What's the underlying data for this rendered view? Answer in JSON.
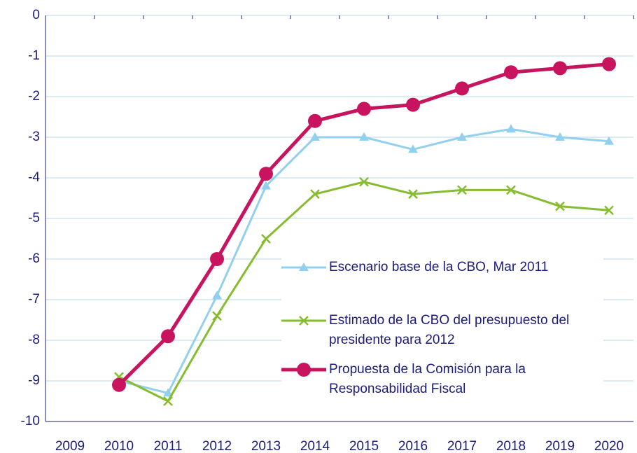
{
  "chart_data": {
    "type": "line",
    "categories": [
      "2009",
      "2010",
      "2011",
      "2012",
      "2013",
      "2014",
      "2015",
      "2016",
      "2017",
      "2018",
      "2019",
      "2020"
    ],
    "series": [
      {
        "name": "Escenario base de la CBO, Mar 2011",
        "color": "#93d0ee",
        "marker": "triangle",
        "values": [
          null,
          -9.0,
          -9.3,
          -6.9,
          -4.2,
          -3.0,
          -3.0,
          -3.3,
          -3.0,
          -2.8,
          -3.0,
          -3.1
        ]
      },
      {
        "name": "Estimado de la CBO del presupuesto del presidente para 2012",
        "color": "#86bc2f",
        "marker": "x",
        "values": [
          null,
          -8.9,
          -9.5,
          -7.4,
          -5.5,
          -4.4,
          -4.1,
          -4.4,
          -4.3,
          -4.3,
          -4.7,
          -4.8
        ]
      },
      {
        "name": "Propuesta de la Comisión para la Responsabilidad Fiscal",
        "color": "#c8145e",
        "marker": "circle",
        "values": [
          null,
          -9.1,
          -7.9,
          -6.0,
          -3.9,
          -2.6,
          -2.3,
          -2.2,
          -1.8,
          -1.4,
          -1.3,
          -1.2
        ]
      }
    ],
    "ylim": [
      -10,
      0
    ],
    "yticks": [
      0,
      -1,
      -2,
      -3,
      -4,
      -5,
      -6,
      -7,
      -8,
      -9,
      -10
    ],
    "grid": true
  }
}
